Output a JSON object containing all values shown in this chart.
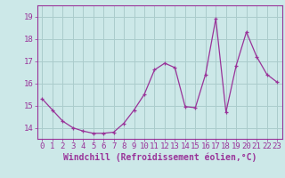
{
  "x": [
    0,
    1,
    2,
    3,
    4,
    5,
    6,
    7,
    8,
    9,
    10,
    11,
    12,
    13,
    14,
    15,
    16,
    17,
    18,
    19,
    20,
    21,
    22,
    23
  ],
  "y": [
    15.3,
    14.8,
    14.3,
    14.0,
    13.85,
    13.75,
    13.75,
    13.8,
    14.2,
    14.8,
    15.5,
    16.6,
    16.9,
    16.7,
    14.95,
    14.9,
    16.4,
    18.9,
    14.7,
    16.8,
    18.3,
    17.2,
    16.4,
    16.05
  ],
  "line_color": "#993399",
  "marker": "+",
  "bg_color": "#cce8e8",
  "grid_color": "#aacccc",
  "xlabel": "Windchill (Refroidissement éolien,°C)",
  "xlabel_fontsize": 7,
  "tick_fontsize": 6.5,
  "xlim": [
    -0.5,
    23.5
  ],
  "ylim": [
    13.5,
    19.5
  ],
  "yticks": [
    14,
    15,
    16,
    17,
    18,
    19
  ],
  "xticks": [
    0,
    1,
    2,
    3,
    4,
    5,
    6,
    7,
    8,
    9,
    10,
    11,
    12,
    13,
    14,
    15,
    16,
    17,
    18,
    19,
    20,
    21,
    22,
    23
  ]
}
